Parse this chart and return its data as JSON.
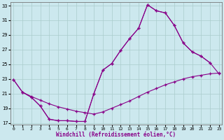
{
  "bg_color": "#cce8ee",
  "line_color": "#880088",
  "grid_color": "#aacccc",
  "xlim": [
    -0.3,
    23.3
  ],
  "ylim": [
    16.8,
    33.5
  ],
  "xticks": [
    0,
    1,
    2,
    3,
    4,
    5,
    6,
    7,
    8,
    9,
    10,
    11,
    12,
    13,
    14,
    15,
    16,
    17,
    18,
    19,
    20,
    21,
    22,
    23
  ],
  "yticks": [
    17,
    19,
    21,
    23,
    25,
    27,
    29,
    31,
    33
  ],
  "xlabel": "Windchill (Refroidissement éolien,°C)",
  "curve1_x": [
    0,
    1,
    2,
    3,
    4,
    5,
    6,
    7,
    8,
    9,
    10,
    11,
    12,
    13,
    14,
    15,
    16,
    17,
    18,
    19,
    20,
    21,
    22
  ],
  "curve1_y": [
    22.9,
    21.2,
    20.5,
    19.3,
    17.5,
    17.3,
    17.3,
    17.2,
    17.2,
    21.0,
    24.2,
    25.1,
    26.9,
    28.5,
    29.9,
    33.1,
    32.3,
    32.0,
    30.3,
    27.9,
    26.7,
    26.1,
    25.2
  ],
  "curve2_x": [
    1,
    2,
    3,
    4,
    5,
    6,
    7,
    8,
    9,
    10,
    11,
    12,
    13,
    14,
    15,
    16,
    17,
    18,
    19,
    20,
    21,
    22,
    23
  ],
  "curve2_y": [
    21.2,
    20.5,
    19.3,
    17.5,
    17.3,
    17.3,
    17.2,
    17.2,
    21.0,
    24.2,
    25.1,
    26.9,
    28.5,
    29.9,
    33.1,
    32.3,
    32.0,
    30.3,
    27.9,
    26.7,
    26.1,
    25.2,
    23.7
  ],
  "curve3_x": [
    0,
    1,
    2,
    3,
    4,
    5,
    6,
    7,
    8,
    9,
    10,
    11,
    12,
    13,
    14,
    15,
    16,
    17,
    18,
    19,
    20,
    21,
    22,
    23
  ],
  "curve3_y": [
    22.9,
    21.2,
    20.6,
    20.1,
    19.6,
    19.2,
    18.9,
    18.6,
    18.4,
    18.2,
    18.5,
    19.0,
    19.5,
    20.0,
    20.6,
    21.2,
    21.7,
    22.2,
    22.6,
    23.0,
    23.3,
    23.5,
    23.7,
    23.8
  ]
}
